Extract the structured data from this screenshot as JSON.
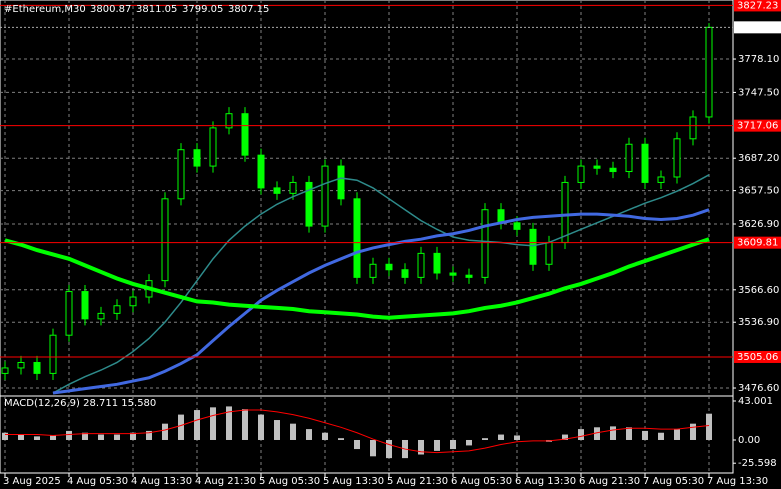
{
  "chart_data": [
    {
      "type": "candlestick",
      "title": "#Ethereum,M30",
      "header_values": [
        3800.87,
        3811.05,
        3799.05,
        3807.15
      ],
      "categories": [
        "3 Aug 2025",
        null,
        null,
        null,
        "4 Aug 05:30",
        null,
        null,
        null,
        "4 Aug 13:30",
        null,
        null,
        null,
        "4 Aug 21:30",
        null,
        null,
        null,
        "5 Aug 05:30",
        null,
        null,
        null,
        "5 Aug 13:30",
        null,
        null,
        null,
        "5 Aug 21:30",
        null,
        null,
        null,
        "6 Aug 05:30",
        null,
        null,
        null,
        "6 Aug 13:30",
        null,
        null,
        null,
        "6 Aug 21:30",
        null,
        null,
        null,
        "7 Aug 05:30",
        null,
        null,
        null,
        "7 Aug 13:30"
      ],
      "open": [
        3490,
        3495,
        3500,
        3490,
        3525,
        3565,
        3540,
        3545,
        3552,
        3560,
        3575,
        3650,
        3695,
        3680,
        3715,
        3728,
        3690,
        3660,
        3655,
        3665,
        3625,
        3680,
        3650,
        3578,
        3590,
        3585,
        3578,
        3600,
        3582,
        3580,
        3578,
        3640,
        3628,
        3622,
        3590,
        3610,
        3665,
        3680,
        3678,
        3675,
        3700,
        3665,
        3670,
        3705,
        3725
      ],
      "high": [
        3501,
        3506,
        3506,
        3531,
        3571,
        3571,
        3551,
        3558,
        3566,
        3581,
        3656,
        3701,
        3701,
        3721,
        3734,
        3734,
        3696,
        3666,
        3671,
        3671,
        3686,
        3686,
        3656,
        3596,
        3596,
        3591,
        3606,
        3606,
        3588,
        3586,
        3646,
        3646,
        3634,
        3628,
        3616,
        3671,
        3686,
        3686,
        3684,
        3706,
        3706,
        3676,
        3711,
        3731,
        3811.05
      ],
      "low": [
        3484,
        3489,
        3484,
        3484,
        3519,
        3534,
        3534,
        3539,
        3546,
        3554,
        3569,
        3644,
        3674,
        3674,
        3709,
        3684,
        3654,
        3649,
        3649,
        3619,
        3619,
        3644,
        3572,
        3572,
        3579,
        3572,
        3572,
        3576,
        3574,
        3572,
        3572,
        3622,
        3616,
        3584,
        3584,
        3604,
        3659,
        3672,
        3669,
        3669,
        3659,
        3659,
        3664,
        3699,
        3719
      ],
      "close": [
        3495,
        3500,
        3490,
        3525,
        3565,
        3540,
        3545,
        3552,
        3560,
        3575,
        3650,
        3695,
        3680,
        3715,
        3728,
        3690,
        3660,
        3655,
        3665,
        3625,
        3680,
        3650,
        3578,
        3590,
        3585,
        3578,
        3600,
        3582,
        3580,
        3578,
        3640,
        3628,
        3622,
        3590,
        3610,
        3665,
        3680,
        3678,
        3675,
        3700,
        3665,
        3670,
        3705,
        3725,
        3807.15
      ],
      "color": "#00ff00",
      "series": [
        {
          "color": "#2e8b8b",
          "width": 1.5,
          "values": [
            null,
            null,
            null,
            3472,
            3480,
            3487,
            3493,
            3500,
            3510,
            3522,
            3537,
            3555,
            3575,
            3595,
            3612,
            3625,
            3636,
            3645,
            3652,
            3658,
            3664,
            3669,
            3667,
            3660,
            3650,
            3640,
            3630,
            3622,
            3615,
            3612,
            3611,
            3610,
            3608,
            3607,
            3610,
            3616,
            3622,
            3628,
            3634,
            3640,
            3646,
            3651,
            3657,
            3664,
            3672
          ]
        },
        {
          "color": "#4169e1",
          "width": 3,
          "values": [
            null,
            null,
            null,
            3472,
            3474,
            3476,
            3478,
            3480,
            3483,
            3486,
            3492,
            3499,
            3507,
            3520,
            3533,
            3545,
            3557,
            3566,
            3574,
            3582,
            3589,
            3595,
            3601,
            3605,
            3608,
            3611,
            3613,
            3616,
            3618,
            3621,
            3625,
            3628,
            3631,
            3633,
            3634,
            3635,
            3636,
            3636,
            3635,
            3634,
            3632,
            3631,
            3632,
            3635,
            3640
          ]
        },
        {
          "color": "#00ff00",
          "width": 4,
          "values": [
            3612,
            3608,
            3603,
            3599,
            3595,
            3589,
            3583,
            3577,
            3572,
            3568,
            3564,
            3560,
            3556,
            3555,
            3553,
            3552,
            3551,
            3550,
            3549,
            3547,
            3546,
            3545,
            3544,
            3542,
            3541,
            3542,
            3543,
            3544,
            3545,
            3547,
            3550,
            3552,
            3555,
            3559,
            3563,
            3568,
            3572,
            3577,
            3582,
            3588,
            3593,
            3598,
            3603,
            3608,
            3613
          ]
        }
      ],
      "levels": [
        3827.23,
        3717.06,
        3609.81,
        3505.06
      ],
      "level_color": "#ff0000",
      "last_price": 3807.15,
      "ylim": [
        3470.2,
        3832.2
      ],
      "yticks": [
        {
          "value": 3778.1,
          "label": "3778.10"
        },
        {
          "value": 3747.5,
          "label": "3747.50"
        },
        {
          "value": 3687.2,
          "label": "3687.20"
        },
        {
          "value": 3657.5,
          "label": "3657.50"
        },
        {
          "value": 3626.9,
          "label": "3626.90"
        },
        {
          "value": 3566.6,
          "label": "3566.60"
        },
        {
          "value": 3536.9,
          "label": "3536.90"
        },
        {
          "value": 3476.6,
          "label": "3476.60"
        }
      ],
      "grid": true
    },
    {
      "type": "bar",
      "title": "MACD(12,26,9) 28.711 15.580",
      "color": "#c0c0c0",
      "values": [
        8,
        6,
        4,
        5,
        10,
        8,
        6,
        6,
        8,
        10,
        18,
        28,
        33,
        36,
        37,
        34,
        28,
        22,
        18,
        12,
        8,
        2,
        -10,
        -18,
        -20,
        -20,
        -16,
        -12,
        -10,
        -6,
        2,
        6,
        5,
        0,
        -2,
        6,
        12,
        14,
        15,
        14,
        10,
        8,
        12,
        18,
        29
      ],
      "series": [
        {
          "color": "#ff0000",
          "width": 1,
          "values": [
            6,
            6,
            6,
            5,
            6,
            7,
            7,
            7,
            7,
            8,
            11,
            16,
            22,
            27,
            31,
            33,
            33,
            31,
            28,
            24,
            19,
            14,
            8,
            1,
            -5,
            -10,
            -13,
            -14,
            -13,
            -12,
            -9,
            -5,
            -2,
            -1,
            -1,
            1,
            4,
            8,
            11,
            13,
            13,
            12,
            12,
            14,
            16
          ]
        }
      ],
      "ylim": [
        -36.4,
        47.4
      ],
      "yticks": [
        43.001,
        {
          "value": 0,
          "label": "0.00"
        },
        -25.598
      ]
    }
  ]
}
